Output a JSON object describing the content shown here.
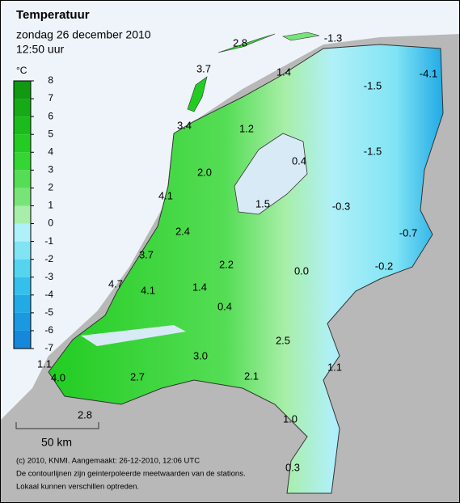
{
  "header": {
    "title": "Temperatuur",
    "date": "zondag 26 december 2010",
    "time": "12:50 uur"
  },
  "legend": {
    "unit": "°C",
    "ticks": [
      8,
      7,
      6,
      5,
      4,
      3,
      2,
      1,
      0,
      -1,
      -2,
      -3,
      -4,
      -5,
      -6,
      -7
    ],
    "colors": [
      "#119911",
      "#16aa16",
      "#1cbb1c",
      "#22cc22",
      "#33d633",
      "#55dd55",
      "#77e477",
      "#a8eea8",
      "#b0f0f8",
      "#80e4f4",
      "#55d4f0",
      "#33c0ec",
      "#22aae6",
      "#1a98e0",
      "#1588da"
    ]
  },
  "stations": [
    "2.8",
    "-1.3",
    "3.7",
    "1.4",
    "-1.5",
    "-4.1",
    "3.4",
    "1.2",
    "2.0",
    "0.4",
    "-1.5",
    "4.1",
    "1.5",
    "-0.3",
    "2.4",
    "-0.7",
    "3.7",
    "2.2",
    "0.0",
    "-0.2",
    "4.7",
    "4.1",
    "1.4",
    "0.4",
    "2.5",
    "3.0",
    "1.1",
    "1.1",
    "2.7",
    "2.1",
    "4.0",
    "2.8",
    "1.0",
    "0.3"
  ],
  "scale": "50 km",
  "footer": [
    "(c) 2010, KNMI. Aangemaakt: 26-12-2010, 12:06 UTC",
    "De contourlijnen zijn geinterpoleerde meetwaarden van de stations.",
    "Lokaal kunnen verschillen optreden."
  ]
}
